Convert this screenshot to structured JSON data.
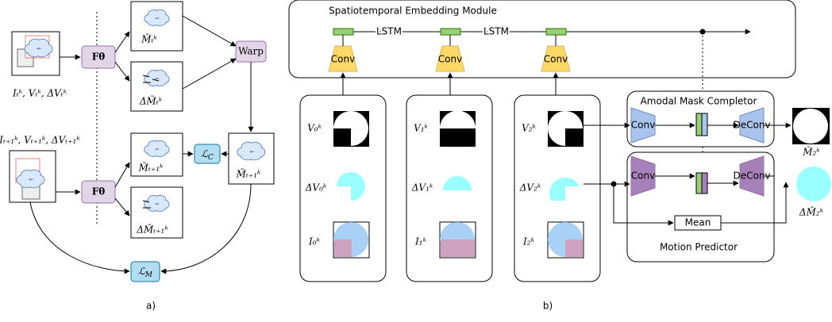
{
  "panel_a": {
    "input_t": "Iₜᵏ, Vₜᵏ, ΔVₜᵏ",
    "input_t1": "Iₜ₊₁ᵏ, Vₜ₊₁ᵏ, ΔVₜ₊₁ᵏ",
    "f_theta_top": "Fθ",
    "f_theta_bottom": "Fθ",
    "mask_t": "M̃ₜᵏ",
    "delta_mask_t": "ΔM̃ₜᵏ",
    "warp": "Warp",
    "mask_t1": "M̃ₜ₊₁ᵏ",
    "delta_mask_t1": "ΔM̃ₜ₊₁ᵏ",
    "warped_mask": "M̃ₜ₊₁ᵏ",
    "loss_c": {
      "symbol": "ℒ",
      "sub": "C"
    },
    "loss_m": {
      "symbol": "ℒ",
      "sub": "M"
    },
    "caption": "a)"
  },
  "panel_b": {
    "module_title": "Spatiotemporal Embedding Module",
    "lstm_labels": [
      "LSTM",
      "LSTM"
    ],
    "conv_labels": [
      "Conv",
      "Conv",
      "Conv"
    ],
    "columns": [
      {
        "v": "V₀ᵏ",
        "dv": "ΔV₀ᵏ",
        "i": "I₀ᵏ"
      },
      {
        "v": "V₁ᵏ",
        "dv": "ΔV₁ᵏ",
        "i": "I₁ᵏ"
      },
      {
        "v": "V₂ᵏ",
        "dv": "ΔV₂ᵏ",
        "i": "I₂ᵏ"
      }
    ],
    "amodal": {
      "title": "Amodal Mask Completor",
      "conv": "Conv",
      "deconv": "DeConv",
      "output": "M̃₂ᵏ"
    },
    "motion": {
      "title": "Motion Predictor",
      "conv": "Conv",
      "deconv": "DeConv",
      "mean": "Mean",
      "output": "ΔM̃₂ᵏ"
    },
    "caption": "b)"
  }
}
